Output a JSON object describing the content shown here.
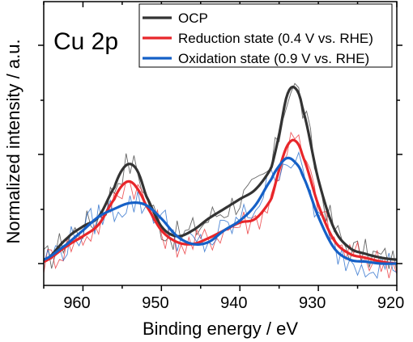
{
  "chart_data": {
    "type": "line",
    "panel_label": "Cu 2p",
    "xlabel": "Binding energy / eV",
    "ylabel": "Normalized intensity / a.u.",
    "xlim": [
      965,
      920
    ],
    "ylim": [
      0,
      1.2
    ],
    "x_reversed": true,
    "x_ticks": [
      960,
      950,
      940,
      930,
      920
    ],
    "x_tick_labels": [
      "960",
      "950",
      "940",
      "930",
      "920"
    ],
    "y_tick_labels_shown": false,
    "legend": {
      "placement": "top-right",
      "frame": true
    },
    "series": [
      {
        "name": "OCP",
        "color": "#333333",
        "x": [
          965,
          962,
          960,
          958,
          956,
          955,
          954,
          953,
          952,
          950,
          948,
          946,
          944,
          942,
          940,
          938,
          936,
          935,
          934,
          933,
          932,
          930,
          928,
          926,
          924,
          922,
          920
        ],
        "y": [
          0.01,
          0.13,
          0.19,
          0.24,
          0.39,
          0.48,
          0.51,
          0.47,
          0.35,
          0.19,
          0.14,
          0.17,
          0.23,
          0.28,
          0.33,
          0.38,
          0.49,
          0.66,
          0.86,
          0.9,
          0.79,
          0.43,
          0.18,
          0.08,
          0.05,
          0.03,
          0.02
        ]
      },
      {
        "name": "Reduction state (0.4 V vs. RHE)",
        "color": "#e8262a",
        "x": [
          965,
          962,
          960,
          958,
          956,
          955,
          954,
          953,
          952,
          950,
          948,
          946,
          944,
          942,
          940,
          938,
          936,
          935,
          934,
          933,
          932,
          930,
          928,
          926,
          924,
          922,
          920
        ],
        "y": [
          0.01,
          0.09,
          0.14,
          0.2,
          0.33,
          0.4,
          0.42,
          0.38,
          0.3,
          0.17,
          0.11,
          0.1,
          0.13,
          0.17,
          0.21,
          0.23,
          0.33,
          0.48,
          0.6,
          0.63,
          0.55,
          0.3,
          0.12,
          0.05,
          0.03,
          0.01,
          0.0
        ]
      },
      {
        "name": "Oxidation state (0.9 V vs. RHE)",
        "color": "#1560c7",
        "x": [
          965,
          962,
          960,
          958,
          956,
          954,
          952,
          950,
          948,
          946,
          944,
          942,
          940,
          938,
          936,
          935,
          934,
          933,
          932,
          930,
          928,
          926,
          924,
          922,
          920
        ],
        "y": [
          0.02,
          0.1,
          0.17,
          0.24,
          0.28,
          0.31,
          0.3,
          0.23,
          0.14,
          0.1,
          0.11,
          0.17,
          0.22,
          0.3,
          0.43,
          0.5,
          0.54,
          0.52,
          0.45,
          0.24,
          0.08,
          0.02,
          0.01,
          0.0,
          0.0
        ]
      }
    ]
  }
}
